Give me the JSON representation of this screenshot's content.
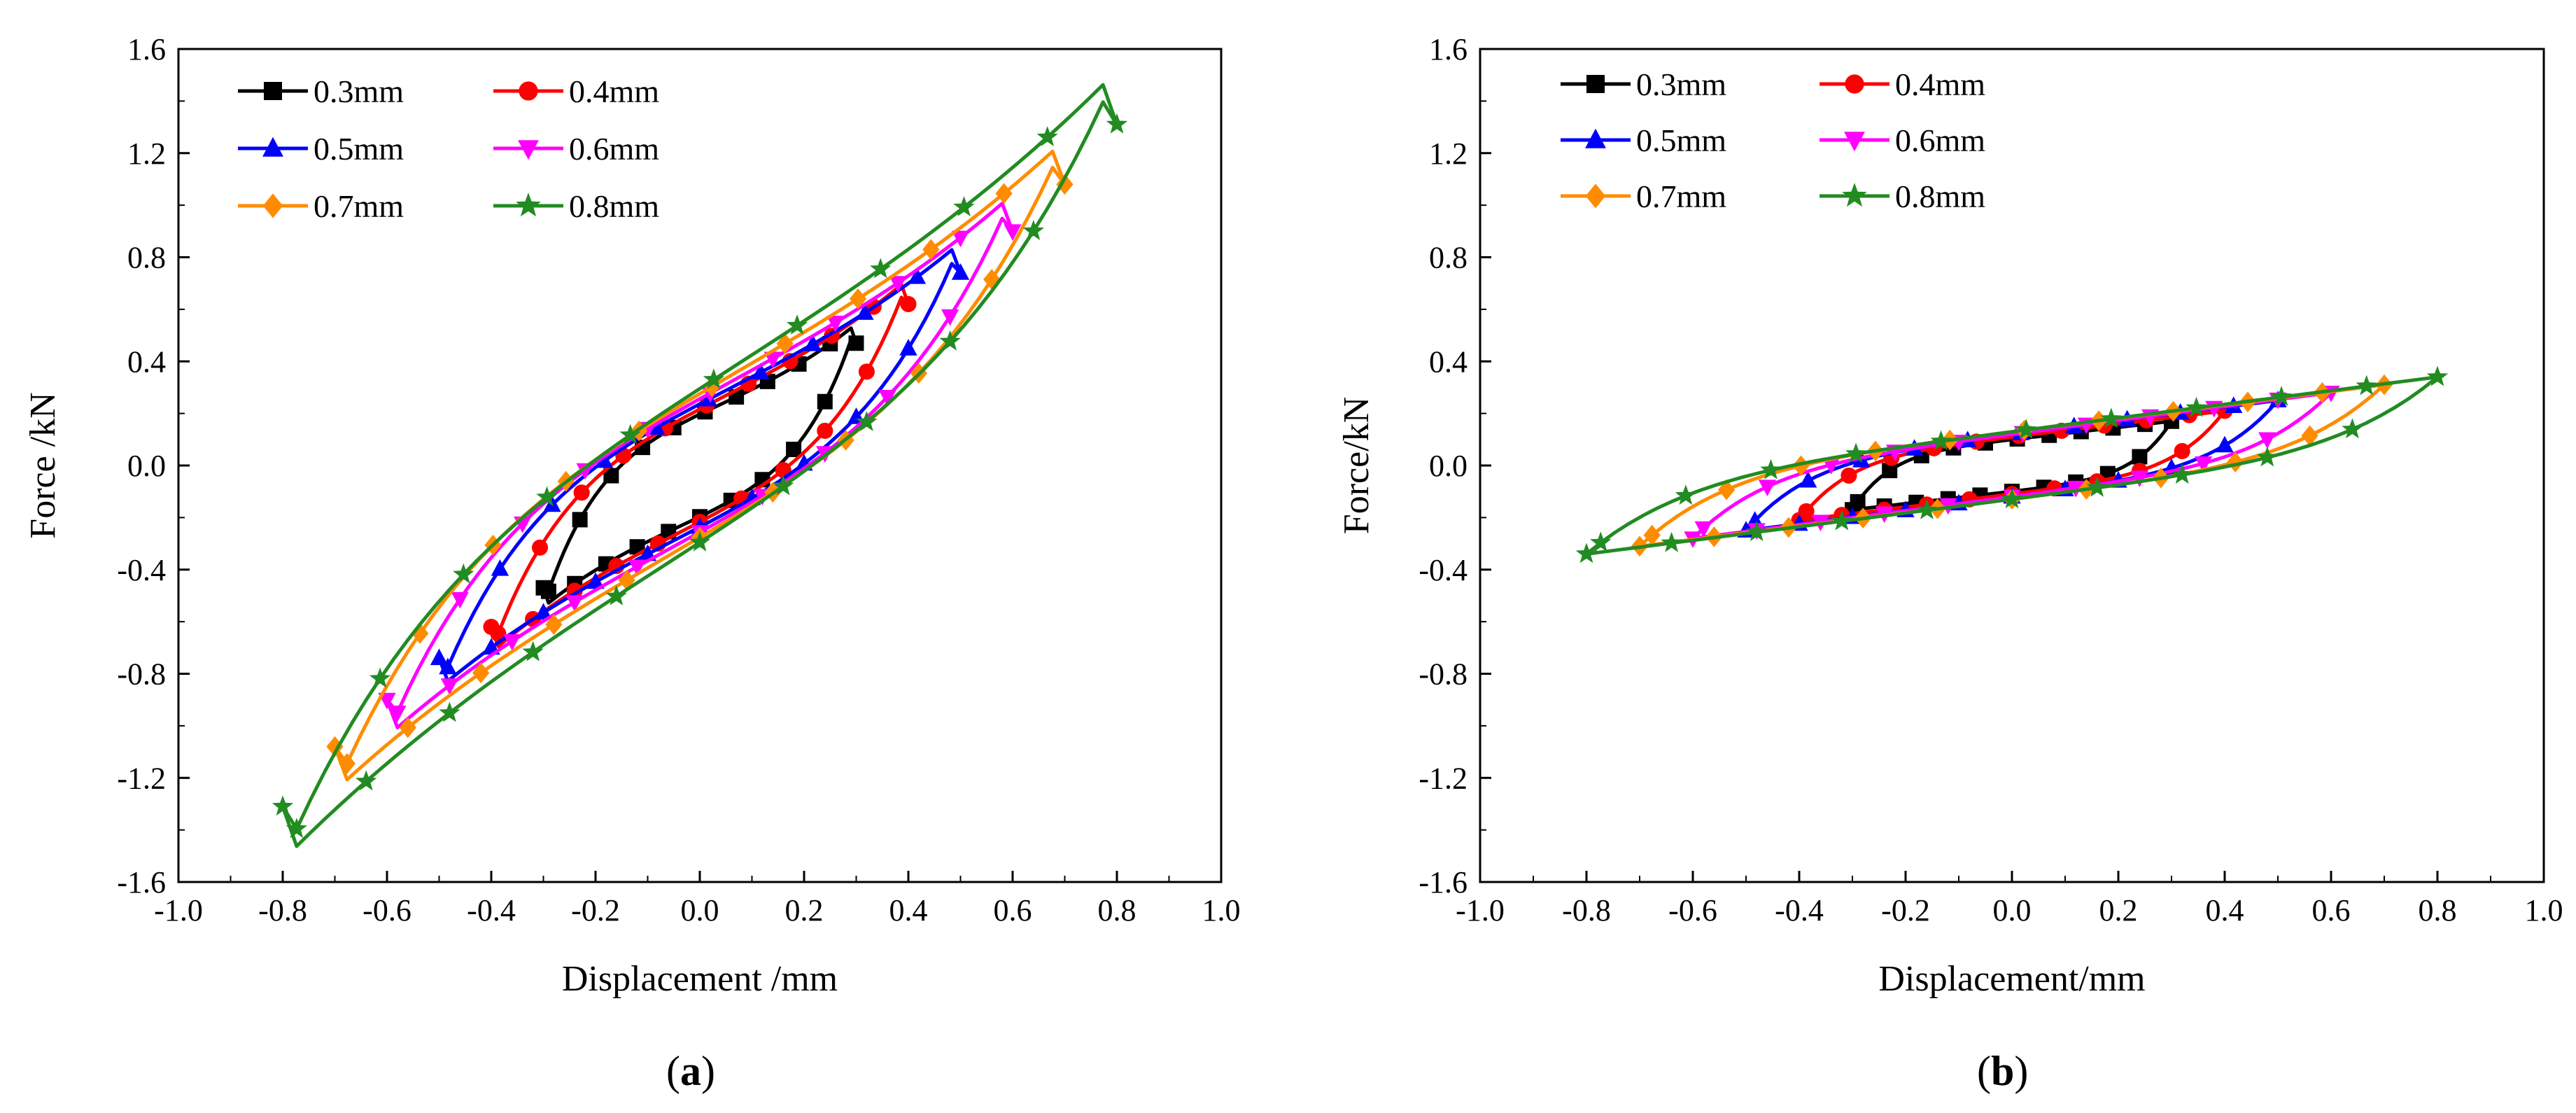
{
  "figure": {
    "panels": [
      {
        "label_open": "(",
        "label_letter": "a",
        "label_close": ")"
      },
      {
        "label_open": "(",
        "label_letter": "b",
        "label_close": ")"
      }
    ]
  },
  "chart_data": [
    {
      "type": "line",
      "title": "",
      "xlabel": "Displacement /mm",
      "ylabel": "Force /kN",
      "xlim": [
        -1.0,
        1.0
      ],
      "ylim": [
        -1.6,
        1.6
      ],
      "xticks": [
        -1.0,
        -0.8,
        -0.6,
        -0.4,
        -0.2,
        0.0,
        0.2,
        0.4,
        0.6,
        0.8,
        1.0
      ],
      "yticks": [
        -1.6,
        -1.2,
        -0.8,
        -0.4,
        0.0,
        0.4,
        0.8,
        1.2,
        1.6
      ],
      "xtick_labels": [
        "-1.0",
        "-0.8",
        "-0.6",
        "-0.4",
        "-0.2",
        "0.0",
        "0.2",
        "0.4",
        "0.6",
        "0.8",
        "1.0"
      ],
      "ytick_labels": [
        "-1.6",
        "-1.2",
        "-0.8",
        "-0.4",
        "0.0",
        "0.4",
        "0.8",
        "1.2",
        "1.6"
      ],
      "grid": false,
      "legend_position": "top-left",
      "curve_shape": "s",
      "series": [
        {
          "name": "0.3mm",
          "color": "#000000",
          "marker": "square",
          "amplitude": 0.3,
          "peak_force": 0.47,
          "intercept": 0.2
        },
        {
          "name": "0.4mm",
          "color": "#ff0000",
          "marker": "circle",
          "amplitude": 0.4,
          "peak_force": 0.62,
          "intercept": 0.22
        },
        {
          "name": "0.5mm",
          "color": "#0000ff",
          "marker": "triangle-up",
          "amplitude": 0.5,
          "peak_force": 0.74,
          "intercept": 0.24
        },
        {
          "name": "0.6mm",
          "color": "#ff00ff",
          "marker": "triangle-down",
          "amplitude": 0.6,
          "peak_force": 0.9,
          "intercept": 0.26
        },
        {
          "name": "0.7mm",
          "color": "#ff8c00",
          "marker": "diamond",
          "amplitude": 0.7,
          "peak_force": 1.08,
          "intercept": 0.28
        },
        {
          "name": "0.8mm",
          "color": "#228b22",
          "marker": "star",
          "amplitude": 0.8,
          "peak_force": 1.31,
          "intercept": 0.3
        }
      ]
    },
    {
      "type": "line",
      "title": "",
      "xlabel": "Displacement/mm",
      "ylabel": "Force/kN",
      "xlim": [
        -1.0,
        1.0
      ],
      "ylim": [
        -1.6,
        1.6
      ],
      "xticks": [
        -1.0,
        -0.8,
        -0.6,
        -0.4,
        -0.2,
        0.0,
        0.2,
        0.4,
        0.6,
        0.8,
        1.0
      ],
      "yticks": [
        -1.6,
        -1.2,
        -0.8,
        -0.4,
        0.0,
        0.4,
        0.8,
        1.2,
        1.6
      ],
      "xtick_labels": [
        "-1.0",
        "-0.8",
        "-0.6",
        "-0.4",
        "-0.2",
        "0.0",
        "0.2",
        "0.4",
        "0.6",
        "0.8",
        "1.0"
      ],
      "ytick_labels": [
        "-1.6",
        "-1.2",
        "-0.8",
        "-0.4",
        "0.0",
        "0.4",
        "0.8",
        "1.2",
        "1.6"
      ],
      "grid": false,
      "legend_position": "top-left",
      "curve_shape": "linear",
      "series": [
        {
          "name": "0.3mm",
          "color": "#000000",
          "marker": "square",
          "amplitude": 0.3,
          "peak_force": 0.17,
          "intercept": 0.1
        },
        {
          "name": "0.4mm",
          "color": "#ff0000",
          "marker": "circle",
          "amplitude": 0.4,
          "peak_force": 0.21,
          "intercept": 0.11
        },
        {
          "name": "0.5mm",
          "color": "#0000ff",
          "marker": "triangle-up",
          "amplitude": 0.5,
          "peak_force": 0.25,
          "intercept": 0.12
        },
        {
          "name": "0.6mm",
          "color": "#ff00ff",
          "marker": "triangle-down",
          "amplitude": 0.6,
          "peak_force": 0.28,
          "intercept": 0.12
        },
        {
          "name": "0.7mm",
          "color": "#ff8c00",
          "marker": "diamond",
          "amplitude": 0.7,
          "peak_force": 0.31,
          "intercept": 0.13
        },
        {
          "name": "0.8mm",
          "color": "#228b22",
          "marker": "star",
          "amplitude": 0.8,
          "peak_force": 0.34,
          "intercept": 0.13
        }
      ]
    }
  ]
}
